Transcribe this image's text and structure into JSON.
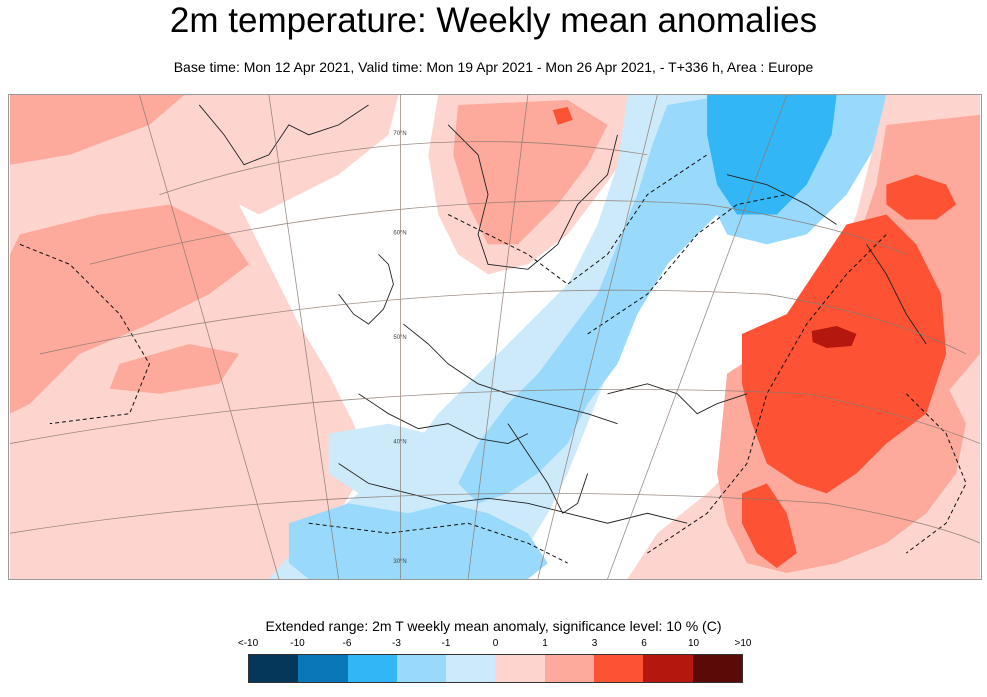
{
  "header": {
    "title": "2m temperature: Weekly mean anomalies",
    "subtitle": "Base time: Mon 12 Apr 2021, Valid time: Mon 19 Apr 2021 - Mon 26 Apr 2021, - T+336 h, Area : Europe"
  },
  "map": {
    "grid_labels": [
      "70°N",
      "60°N",
      "50°N",
      "40°N",
      "30°N"
    ],
    "colors": {
      "lt_minus10": "#04375a",
      "minus10_to_minus6": "#0a78b8",
      "minus6_to_minus3": "#33b6f5",
      "minus3_to_minus1": "#99d9fb",
      "minus1_to_0": "#cdeafb",
      "zero_to_1": "#fed4cf",
      "one_to_3": "#fda99c",
      "three_to_6": "#fd5234",
      "six_to_10": "#b3170d",
      "gt10": "#5a0a07"
    }
  },
  "legend": {
    "title": "Extended range: 2m T weekly mean anomaly, significance level: 10 % (C)",
    "labels": [
      "<-10",
      "-10",
      "-6",
      "-3",
      "-1",
      "0",
      "1",
      "3",
      "6",
      "10",
      ">10"
    ],
    "colors": [
      "#04375a",
      "#0a78b8",
      "#33b6f5",
      "#99d9fb",
      "#cdeafb",
      "#fed4cf",
      "#fda99c",
      "#fd5234",
      "#b3170d",
      "#5a0a07"
    ]
  }
}
